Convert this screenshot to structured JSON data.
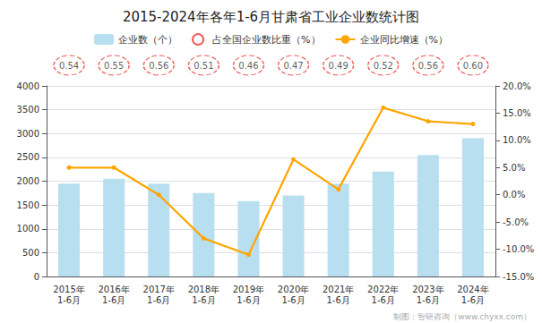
{
  "chart_data": {
    "type": "bar",
    "title": "2015-2024年各年1-6月甘肃省工业企业数统计图",
    "categories": [
      "2015年\n1-6月",
      "2016年\n1-6月",
      "2017年\n1-6月",
      "2018年\n1-6月",
      "2019年\n1-6月",
      "2020年\n1-6月",
      "2021年\n1-6月",
      "2022年\n1-6月",
      "2023年\n1-6月",
      "2024年\n1-6月"
    ],
    "series": [
      {
        "name": "企业数（个）",
        "type": "bar",
        "color": "#B8DFF0",
        "values": [
          1950,
          2050,
          1950,
          1750,
          1580,
          1700,
          1950,
          2200,
          2550,
          2900
        ]
      },
      {
        "name": "占全国企业数比重（%）",
        "type": "scatter",
        "color": "#EE3333",
        "marker": "circle",
        "line_style": "dashed",
        "data_labels": true,
        "values": [
          0.54,
          0.55,
          0.56,
          0.51,
          0.46,
          0.47,
          0.49,
          0.52,
          0.56,
          0.6
        ],
        "value_labels": [
          "0.54",
          "0.55",
          "0.56",
          "0.51",
          "0.46",
          "0.47",
          "0.49",
          "0.52",
          "0.56",
          "0.60"
        ]
      },
      {
        "name": "企业同比增速（%）",
        "type": "line",
        "axis": "y2",
        "color": "#FFA500",
        "marker": "circle",
        "values": [
          5.0,
          5.0,
          0.0,
          -8.0,
          -11.0,
          6.5,
          1.0,
          16.0,
          13.5,
          13.0
        ]
      }
    ],
    "ylim": [
      0,
      4000
    ],
    "yticks": [
      0,
      500,
      1000,
      1500,
      2000,
      2500,
      3000,
      3500,
      4000
    ],
    "y2lim": [
      -15.0,
      20.0
    ],
    "y2ticks": [
      {
        "value": -15.0,
        "label": "-15.0%"
      },
      {
        "value": -10.0,
        "label": "-10.0%"
      },
      {
        "value": -5.0,
        "label": "-5.0%"
      },
      {
        "value": 0.0,
        "label": "0.0%"
      },
      {
        "value": 5.0,
        "label": "5.0%"
      },
      {
        "value": 10.0,
        "label": "10.0%"
      },
      {
        "value": 15.0,
        "label": "15.0%"
      },
      {
        "value": 20.0,
        "label": "20.0%"
      }
    ],
    "grid": true,
    "legend": "top",
    "annotations": [
      "制图：智研咨询（www.chyxx.com）"
    ]
  }
}
